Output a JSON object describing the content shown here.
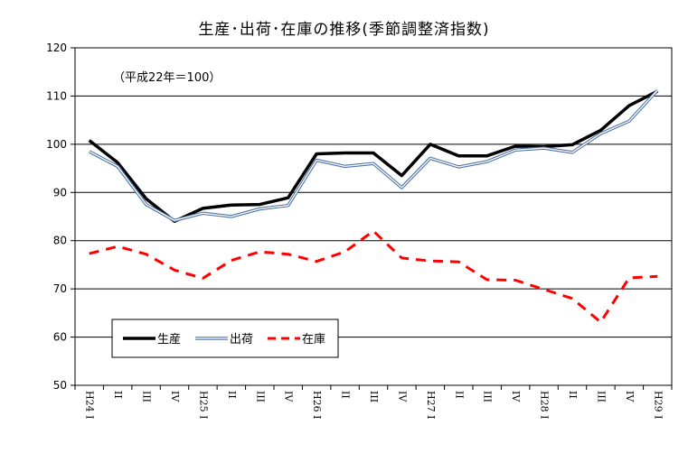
{
  "chart_data": {
    "type": "line",
    "title": "生産･出荷･在庫の推移(季節調整済指数)",
    "note": "（平成22年＝100）",
    "categories": [
      "H24 I",
      "II",
      "III",
      "IV",
      "H25 I",
      "II",
      "III",
      "IV",
      "H26 I",
      "II",
      "III",
      "IV",
      "H27 I",
      "II",
      "III",
      "IV",
      "H28 I",
      "II",
      "III",
      "IV",
      "H29 I"
    ],
    "series": [
      {
        "name": "生産",
        "color": "#000000",
        "values": [
          100.8,
          96.2,
          88.7,
          84.0,
          86.7,
          87.4,
          87.5,
          88.9,
          98.0,
          98.2,
          98.2,
          93.5,
          100.0,
          97.6,
          97.6,
          99.6,
          99.5,
          99.9,
          102.9,
          108.0,
          111.0
        ]
      },
      {
        "name": "出荷",
        "color": "#4f73a8",
        "values": [
          98.5,
          95.4,
          87.5,
          84.2,
          85.7,
          85.0,
          86.6,
          87.3,
          96.7,
          95.4,
          96.0,
          91.0,
          97.1,
          95.3,
          96.4,
          98.8,
          99.2,
          98.3,
          102.2,
          104.8,
          111.2
        ]
      },
      {
        "name": "在庫",
        "color": "#ff0000",
        "values": [
          77.3,
          78.8,
          77.2,
          73.9,
          72.2,
          75.9,
          77.7,
          77.2,
          75.7,
          77.7,
          82.0,
          76.4,
          75.8,
          75.6,
          71.9,
          71.8,
          69.9,
          68.0,
          63.1,
          72.3,
          72.6
        ]
      }
    ],
    "ylim": [
      50,
      120
    ],
    "yticks": [
      50,
      60,
      70,
      80,
      90,
      100,
      110,
      120
    ],
    "grid": true,
    "legend_position": "bottom-left"
  }
}
